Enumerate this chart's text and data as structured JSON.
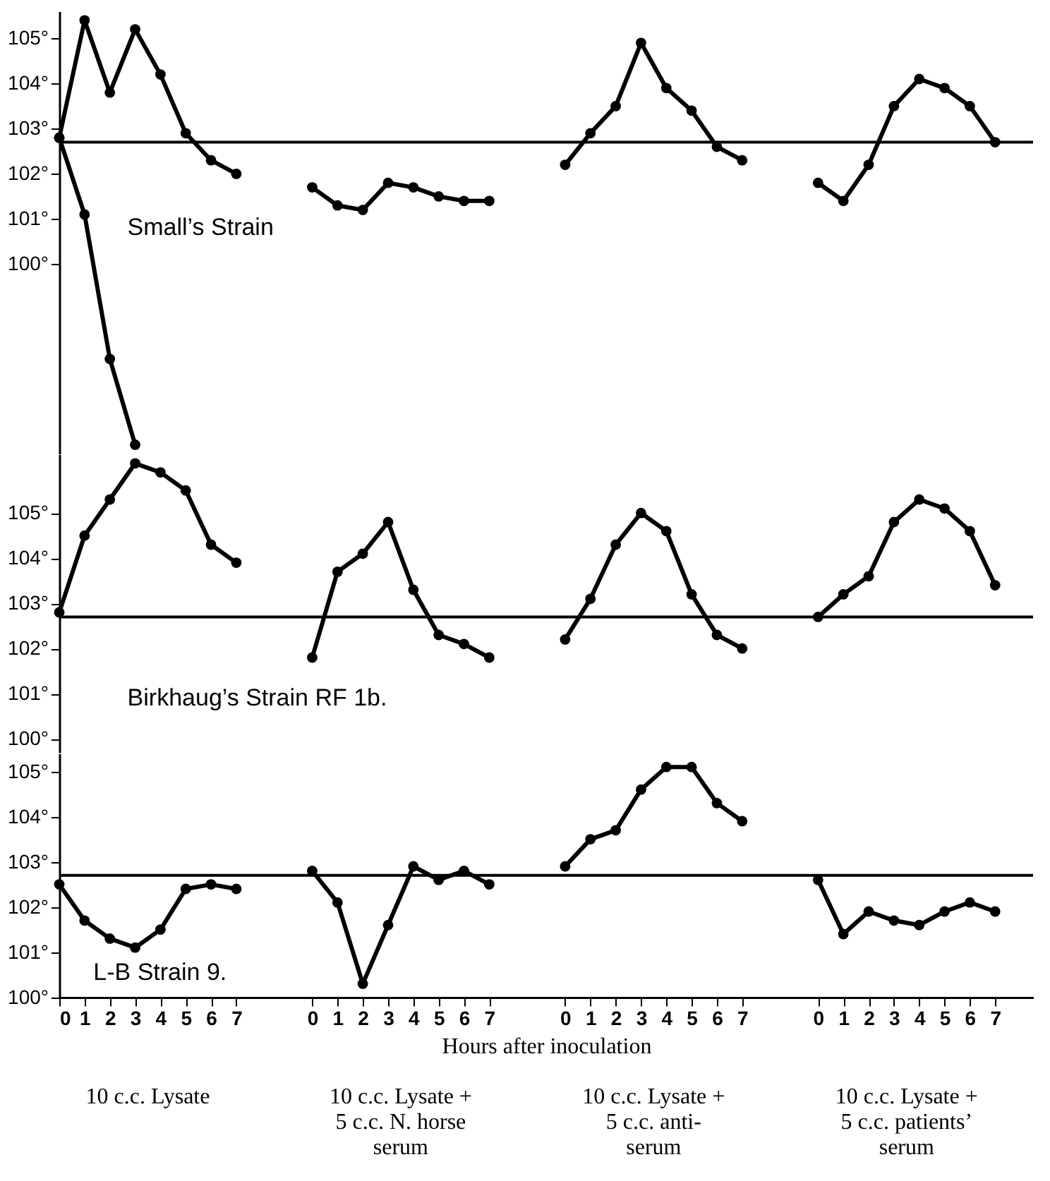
{
  "chart_data": [
    {
      "type": "line",
      "title": "Small’s Strain",
      "tick_labels": "y",
      "marker": "circle",
      "line_style": "solid",
      "grid": false,
      "ylim": [
        95.8,
        105.6
      ],
      "categories": [
        "0",
        "1",
        "2",
        "3",
        "4",
        "5",
        "6",
        "7",
        null,
        null,
        "0",
        "1",
        "2",
        "3",
        "4",
        "5",
        "6",
        "7",
        null,
        null,
        "0",
        "1",
        "2",
        "3",
        "4",
        "5",
        "6",
        "7",
        null,
        null,
        "0",
        "1",
        "2",
        "3",
        "4",
        "5",
        "6",
        "7"
      ],
      "yticks": [
        {
          "value": 100,
          "label": "100°"
        },
        {
          "value": 101,
          "label": "101°"
        },
        {
          "value": 102,
          "label": "102°"
        },
        {
          "value": 103,
          "label": "103°"
        },
        {
          "value": 104,
          "label": "104°"
        },
        {
          "value": 105,
          "label": "105°"
        }
      ],
      "ref_lines": [
        {
          "axis": "y",
          "value": 102.7,
          "color": "#000000"
        }
      ],
      "series": [
        {
          "color": "#000000",
          "values": [
            102.8,
            105.4,
            103.8,
            105.2,
            104.2,
            102.9,
            102.3,
            102.0,
            null,
            null,
            null,
            null,
            null,
            null,
            null,
            null,
            null,
            null,
            null,
            null,
            null,
            null,
            null,
            null,
            null,
            null,
            null,
            null,
            null,
            null,
            null,
            null,
            null,
            null,
            null,
            null,
            null,
            null
          ]
        },
        {
          "color": "#000000",
          "values": [
            102.8,
            101.1,
            97.9,
            96.0,
            null,
            null,
            null,
            null,
            null,
            null,
            null,
            null,
            null,
            null,
            null,
            null,
            null,
            null,
            null,
            null,
            null,
            null,
            null,
            null,
            null,
            null,
            null,
            null,
            null,
            null,
            null,
            null,
            null,
            null,
            null,
            null,
            null,
            null
          ]
        },
        {
          "color": "#000000",
          "values": [
            null,
            null,
            null,
            null,
            null,
            null,
            null,
            null,
            null,
            null,
            101.7,
            101.3,
            101.2,
            101.8,
            101.7,
            101.5,
            101.4,
            101.4,
            null,
            null,
            null,
            null,
            null,
            null,
            null,
            null,
            null,
            null,
            null,
            null,
            null,
            null,
            null,
            null,
            null,
            null,
            null,
            null
          ]
        },
        {
          "color": "#000000",
          "values": [
            null,
            null,
            null,
            null,
            null,
            null,
            null,
            null,
            null,
            null,
            null,
            null,
            null,
            null,
            null,
            null,
            null,
            null,
            null,
            null,
            102.2,
            102.9,
            103.5,
            104.9,
            103.9,
            103.4,
            102.6,
            102.3,
            null,
            null,
            null,
            null,
            null,
            null,
            null,
            null,
            null,
            null
          ]
        },
        {
          "color": "#000000",
          "values": [
            null,
            null,
            null,
            null,
            null,
            null,
            null,
            null,
            null,
            null,
            null,
            null,
            null,
            null,
            null,
            null,
            null,
            null,
            null,
            null,
            null,
            null,
            null,
            null,
            null,
            null,
            null,
            null,
            null,
            null,
            101.8,
            101.4,
            102.2,
            103.5,
            104.1,
            103.9,
            103.5,
            102.7
          ]
        }
      ]
    },
    {
      "type": "line",
      "title": "Birkhaug’s Strain RF 1b.",
      "tick_labels": "y",
      "marker": "circle",
      "line_style": "solid",
      "grid": false,
      "ylim": [
        99.7,
        106.3
      ],
      "categories": [
        "0",
        "1",
        "2",
        "3",
        "4",
        "5",
        "6",
        "7",
        null,
        null,
        "0",
        "1",
        "2",
        "3",
        "4",
        "5",
        "6",
        "7",
        null,
        null,
        "0",
        "1",
        "2",
        "3",
        "4",
        "5",
        "6",
        "7",
        null,
        null,
        "0",
        "1",
        "2",
        "3",
        "4",
        "5",
        "6",
        "7"
      ],
      "yticks": [
        {
          "value": 100,
          "label": "100°"
        },
        {
          "value": 101,
          "label": "101°"
        },
        {
          "value": 102,
          "label": "102°"
        },
        {
          "value": 103,
          "label": "103°"
        },
        {
          "value": 104,
          "label": "104°"
        },
        {
          "value": 105,
          "label": "105°"
        }
      ],
      "ref_lines": [
        {
          "axis": "y",
          "value": 102.7,
          "color": "#000000"
        }
      ],
      "series": [
        {
          "color": "#000000",
          "values": [
            102.8,
            104.5,
            105.3,
            106.1,
            105.9,
            105.5,
            104.3,
            103.9,
            null,
            null,
            null,
            null,
            null,
            null,
            null,
            null,
            null,
            null,
            null,
            null,
            null,
            null,
            null,
            null,
            null,
            null,
            null,
            null,
            null,
            null,
            null,
            null,
            null,
            null,
            null,
            null,
            null,
            null
          ]
        },
        {
          "color": "#000000",
          "values": [
            null,
            null,
            null,
            null,
            null,
            null,
            null,
            null,
            null,
            null,
            101.8,
            103.7,
            104.1,
            104.8,
            103.3,
            102.3,
            102.1,
            101.8,
            null,
            null,
            null,
            null,
            null,
            null,
            null,
            null,
            null,
            null,
            null,
            null,
            null,
            null,
            null,
            null,
            null,
            null,
            null,
            null
          ]
        },
        {
          "color": "#000000",
          "values": [
            null,
            null,
            null,
            null,
            null,
            null,
            null,
            null,
            null,
            null,
            null,
            null,
            null,
            null,
            null,
            null,
            null,
            null,
            null,
            null,
            102.2,
            103.1,
            104.3,
            105.0,
            104.6,
            103.2,
            102.3,
            102.0,
            null,
            null,
            null,
            null,
            null,
            null,
            null,
            null,
            null,
            null
          ]
        },
        {
          "color": "#000000",
          "values": [
            null,
            null,
            null,
            null,
            null,
            null,
            null,
            null,
            null,
            null,
            null,
            null,
            null,
            null,
            null,
            null,
            null,
            null,
            null,
            null,
            null,
            null,
            null,
            null,
            null,
            null,
            null,
            null,
            null,
            null,
            102.7,
            103.2,
            103.6,
            104.8,
            105.3,
            105.1,
            104.6,
            103.4
          ]
        }
      ]
    },
    {
      "type": "line",
      "title": "L-B Strain 9.",
      "xlabel": "Hours after inoculation",
      "marker": "circle",
      "line_style": "solid",
      "grid": false,
      "ylim": [
        100,
        105.4
      ],
      "categories": [
        "0",
        "1",
        "2",
        "3",
        "4",
        "5",
        "6",
        "7",
        null,
        null,
        "0",
        "1",
        "2",
        "3",
        "4",
        "5",
        "6",
        "7",
        null,
        null,
        "0",
        "1",
        "2",
        "3",
        "4",
        "5",
        "6",
        "7",
        null,
        null,
        "0",
        "1",
        "2",
        "3",
        "4",
        "5",
        "6",
        "7"
      ],
      "yticks": [
        {
          "value": 100,
          "label": "100°"
        },
        {
          "value": 101,
          "label": "101°"
        },
        {
          "value": 102,
          "label": "102°"
        },
        {
          "value": 103,
          "label": "103°"
        },
        {
          "value": 104,
          "label": "104°"
        },
        {
          "value": 105,
          "label": "105°"
        }
      ],
      "ref_lines": [
        {
          "axis": "y",
          "value": 102.7,
          "color": "#000000"
        }
      ],
      "annotations": [
        "10 c.c. Lysate",
        "10 c.c. Lysate + 5 c.c. N. horse serum",
        "10 c.c. Lysate + 5 c.c. anti-serum",
        "10 c.c. Lysate + 5 c.c. patients’ serum"
      ],
      "series": [
        {
          "color": "#000000",
          "values": [
            102.5,
            101.7,
            101.3,
            101.1,
            101.5,
            102.4,
            102.5,
            102.4,
            null,
            null,
            null,
            null,
            null,
            null,
            null,
            null,
            null,
            null,
            null,
            null,
            null,
            null,
            null,
            null,
            null,
            null,
            null,
            null,
            null,
            null,
            null,
            null,
            null,
            null,
            null,
            null,
            null,
            null
          ]
        },
        {
          "color": "#000000",
          "values": [
            null,
            null,
            null,
            null,
            null,
            null,
            null,
            null,
            null,
            null,
            102.8,
            102.1,
            100.3,
            101.6,
            102.9,
            102.6,
            102.8,
            102.5,
            null,
            null,
            null,
            null,
            null,
            null,
            null,
            null,
            null,
            null,
            null,
            null,
            null,
            null,
            null,
            null,
            null,
            null,
            null,
            null
          ]
        },
        {
          "color": "#000000",
          "values": [
            null,
            null,
            null,
            null,
            null,
            null,
            null,
            null,
            null,
            null,
            null,
            null,
            null,
            null,
            null,
            null,
            null,
            null,
            null,
            null,
            102.9,
            103.5,
            103.7,
            104.6,
            105.1,
            105.1,
            104.3,
            103.9,
            null,
            null,
            null,
            null,
            null,
            null,
            null,
            null,
            null,
            null
          ]
        },
        {
          "color": "#000000",
          "values": [
            null,
            null,
            null,
            null,
            null,
            null,
            null,
            null,
            null,
            null,
            null,
            null,
            null,
            null,
            null,
            null,
            null,
            null,
            null,
            null,
            null,
            null,
            null,
            null,
            null,
            null,
            null,
            null,
            null,
            null,
            102.6,
            101.4,
            101.9,
            101.7,
            101.6,
            101.9,
            102.1,
            101.9
          ]
        }
      ]
    }
  ]
}
